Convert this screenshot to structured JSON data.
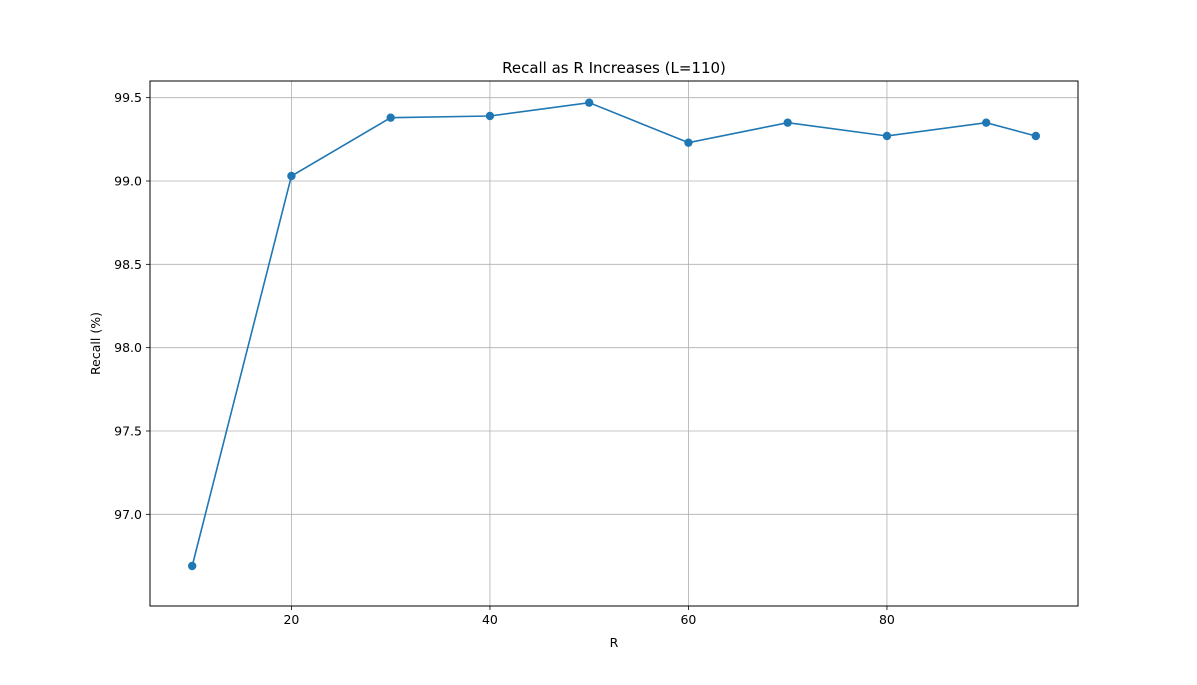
{
  "chart_data": {
    "type": "line",
    "title": "Recall as R Increases (L=110)",
    "xlabel": "R",
    "ylabel": "Recall (%)",
    "xlim": [
      5.75,
      99.25
    ],
    "ylim": [
      96.45,
      99.6
    ],
    "x_ticks": [
      20,
      40,
      60,
      80
    ],
    "x_tick_labels": [
      "20",
      "40",
      "60",
      "80"
    ],
    "y_ticks": [
      97.0,
      97.5,
      98.0,
      98.5,
      99.0,
      99.5
    ],
    "y_tick_labels": [
      "97.0",
      "97.5",
      "98.0",
      "98.5",
      "99.0",
      "99.5"
    ],
    "grid": true,
    "marker": "circle",
    "series_color": "#1f77b4",
    "series": [
      {
        "x": [
          10,
          20,
          30,
          40,
          50,
          60,
          70,
          80,
          90,
          95
        ],
        "values": [
          96.69,
          99.03,
          99.38,
          99.39,
          99.47,
          99.23,
          99.35,
          99.27,
          99.35,
          99.27
        ]
      }
    ]
  }
}
